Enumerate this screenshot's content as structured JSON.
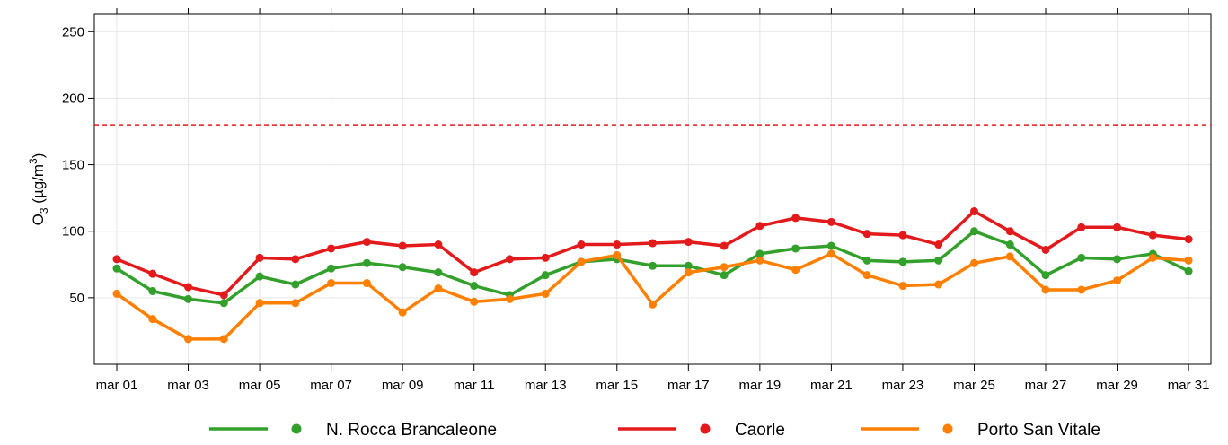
{
  "chart_data": {
    "type": "line",
    "ylabel_parts": [
      "O",
      "3",
      " (µg/m",
      "3",
      ")"
    ],
    "categories": [
      "mar 01",
      null,
      "mar 03",
      null,
      "mar 05",
      null,
      "mar 07",
      null,
      "mar 09",
      null,
      "mar 11",
      null,
      "mar 13",
      null,
      "mar 15",
      null,
      "mar 17",
      null,
      "mar 19",
      null,
      "mar 21",
      null,
      "mar 23",
      null,
      "mar 25",
      null,
      "mar 27",
      null,
      "mar 29",
      null,
      "mar 31"
    ],
    "series": [
      {
        "name": "N. Rocca Brancaleone",
        "color": "#33a02c",
        "values": [
          72,
          55,
          49,
          46,
          66,
          60,
          72,
          76,
          73,
          69,
          59,
          52,
          67,
          77,
          79,
          74,
          74,
          67,
          83,
          87,
          89,
          78,
          77,
          78,
          100,
          90,
          67,
          80,
          79,
          83,
          70
        ]
      },
      {
        "name": "Caorle",
        "color": "#e31a1c",
        "values": [
          79,
          68,
          58,
          52,
          80,
          79,
          87,
          92,
          89,
          90,
          69,
          79,
          80,
          90,
          90,
          91,
          92,
          89,
          104,
          110,
          107,
          98,
          97,
          90,
          115,
          100,
          86,
          103,
          103,
          97,
          94
        ]
      },
      {
        "name": "Porto San Vitale",
        "color": "#ff7f00",
        "values": [
          53,
          34,
          19,
          19,
          46,
          46,
          61,
          61,
          39,
          57,
          47,
          49,
          53,
          77,
          82,
          45,
          69,
          73,
          78,
          71,
          83,
          67,
          59,
          60,
          76,
          81,
          56,
          56,
          63,
          80,
          78
        ]
      }
    ],
    "threshold": 180,
    "threshold_color": "#e31a1c",
    "ylim": [
      0,
      263
    ],
    "yticks": [
      50,
      100,
      150,
      200,
      250
    ],
    "grid": true
  }
}
